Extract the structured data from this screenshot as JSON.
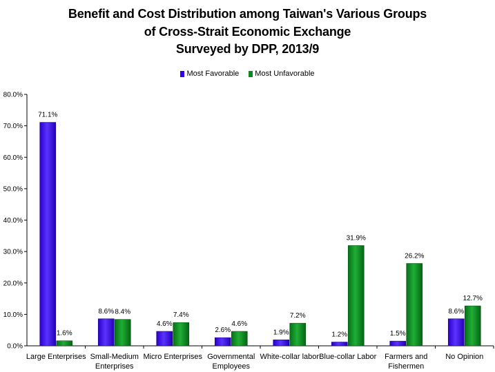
{
  "chart_data": {
    "type": "bar",
    "title_lines": [
      "Benefit and Cost Distribution among Taiwan's Various Groups",
      "of Cross-Strait Economic Exchange",
      "Surveyed by DPP, 2013/9"
    ],
    "categories": [
      [
        "Large Enterprises"
      ],
      [
        "Small-Medium",
        "Enterprises"
      ],
      [
        "Micro Enterprises"
      ],
      [
        "Governmental",
        "Employees"
      ],
      [
        "White-collar labor"
      ],
      [
        "Blue-collar Labor"
      ],
      [
        "Farmers and",
        "Fishermen"
      ],
      [
        "No Opinion"
      ]
    ],
    "series": [
      {
        "name": "Most Favorable",
        "color": "#3300ee",
        "values": [
          71.1,
          8.6,
          4.6,
          2.6,
          1.9,
          1.2,
          1.5,
          8.6
        ],
        "labels": [
          "71.1%",
          "8.6%",
          "4.6%",
          "2.6%",
          "1.9%",
          "1.2%",
          "1.5%",
          "8.6%"
        ]
      },
      {
        "name": "Most Unfavorable",
        "color": "#0a8a1e",
        "values": [
          1.6,
          8.4,
          7.4,
          4.6,
          7.2,
          31.9,
          26.2,
          12.7
        ],
        "labels": [
          "1.6%",
          "8.4%",
          "7.4%",
          "4.6%",
          "7.2%",
          "31.9%",
          "26.2%",
          "12.7%"
        ]
      }
    ],
    "yticks": [
      "0.0%",
      "10.0%",
      "20.0%",
      "30.0%",
      "40.0%",
      "50.0%",
      "60.0%",
      "70.0%",
      "80.0%"
    ],
    "ylim": [
      0,
      80
    ],
    "legend_position": "top-center",
    "grid": false
  }
}
